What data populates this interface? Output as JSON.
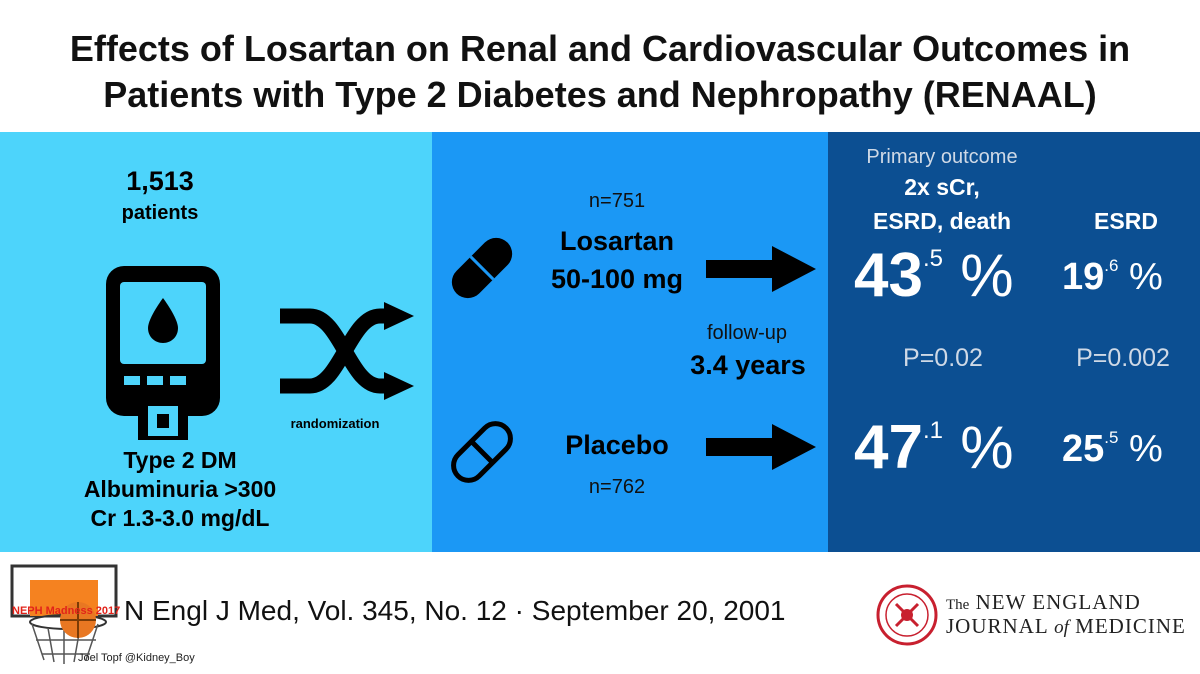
{
  "title": {
    "line1": "Effects of Losartan on Renal and Cardiovascular Outcomes in",
    "line2": "Patients with Type 2 Diabetes and Nephropathy (RENAAL)"
  },
  "colors": {
    "panel1": "#4dd4fb",
    "panel2": "#1b98f5",
    "panel3": "#0c4f92",
    "arrow": "#000000"
  },
  "population": {
    "count": "1,513",
    "unit": "patients",
    "icon": "glucometer-icon",
    "criteria": [
      "Type 2 DM",
      "Albuminuria >300",
      "Cr 1.3-3.0 mg/dL"
    ]
  },
  "randomization": {
    "label": "randomization",
    "icon": "shuffle-icon"
  },
  "arms": {
    "losartan": {
      "n": "n=751",
      "name": "Losartan",
      "dose": "50-100 mg",
      "icon": "pill-solid-icon"
    },
    "placebo": {
      "n": "n=762",
      "name": "Placebo",
      "icon": "pill-outline-icon"
    }
  },
  "followup": {
    "label": "follow-up",
    "value": "3.4 years"
  },
  "outcomes": {
    "primary_label": "Primary outcome",
    "primary_line1": "2x sCr,",
    "primary_line2": "ESRD, death",
    "esrd_label": "ESRD",
    "losartan_primary_int": "43",
    "losartan_primary_dec": ".5",
    "losartan_esrd_int": "19",
    "losartan_esrd_dec": ".6",
    "placebo_primary_int": "47",
    "placebo_primary_dec": ".1",
    "placebo_esrd_int": "25",
    "placebo_esrd_dec": ".5",
    "pct_symbol": "%",
    "p_primary": "P=0.02",
    "p_esrd": "P=0.002"
  },
  "footer": {
    "citation": "N Engl J Med, Vol. 345, No. 12 · September 20, 2001",
    "credit": "Joel Topf @Kidney_Boy",
    "logo_text": "NEPH Madness 2017",
    "journal_the": "The",
    "journal_line1": "NEW ENGLAND",
    "journal_line2a": "JOURNAL",
    "journal_of": "of",
    "journal_line2b": "MEDICINE"
  }
}
